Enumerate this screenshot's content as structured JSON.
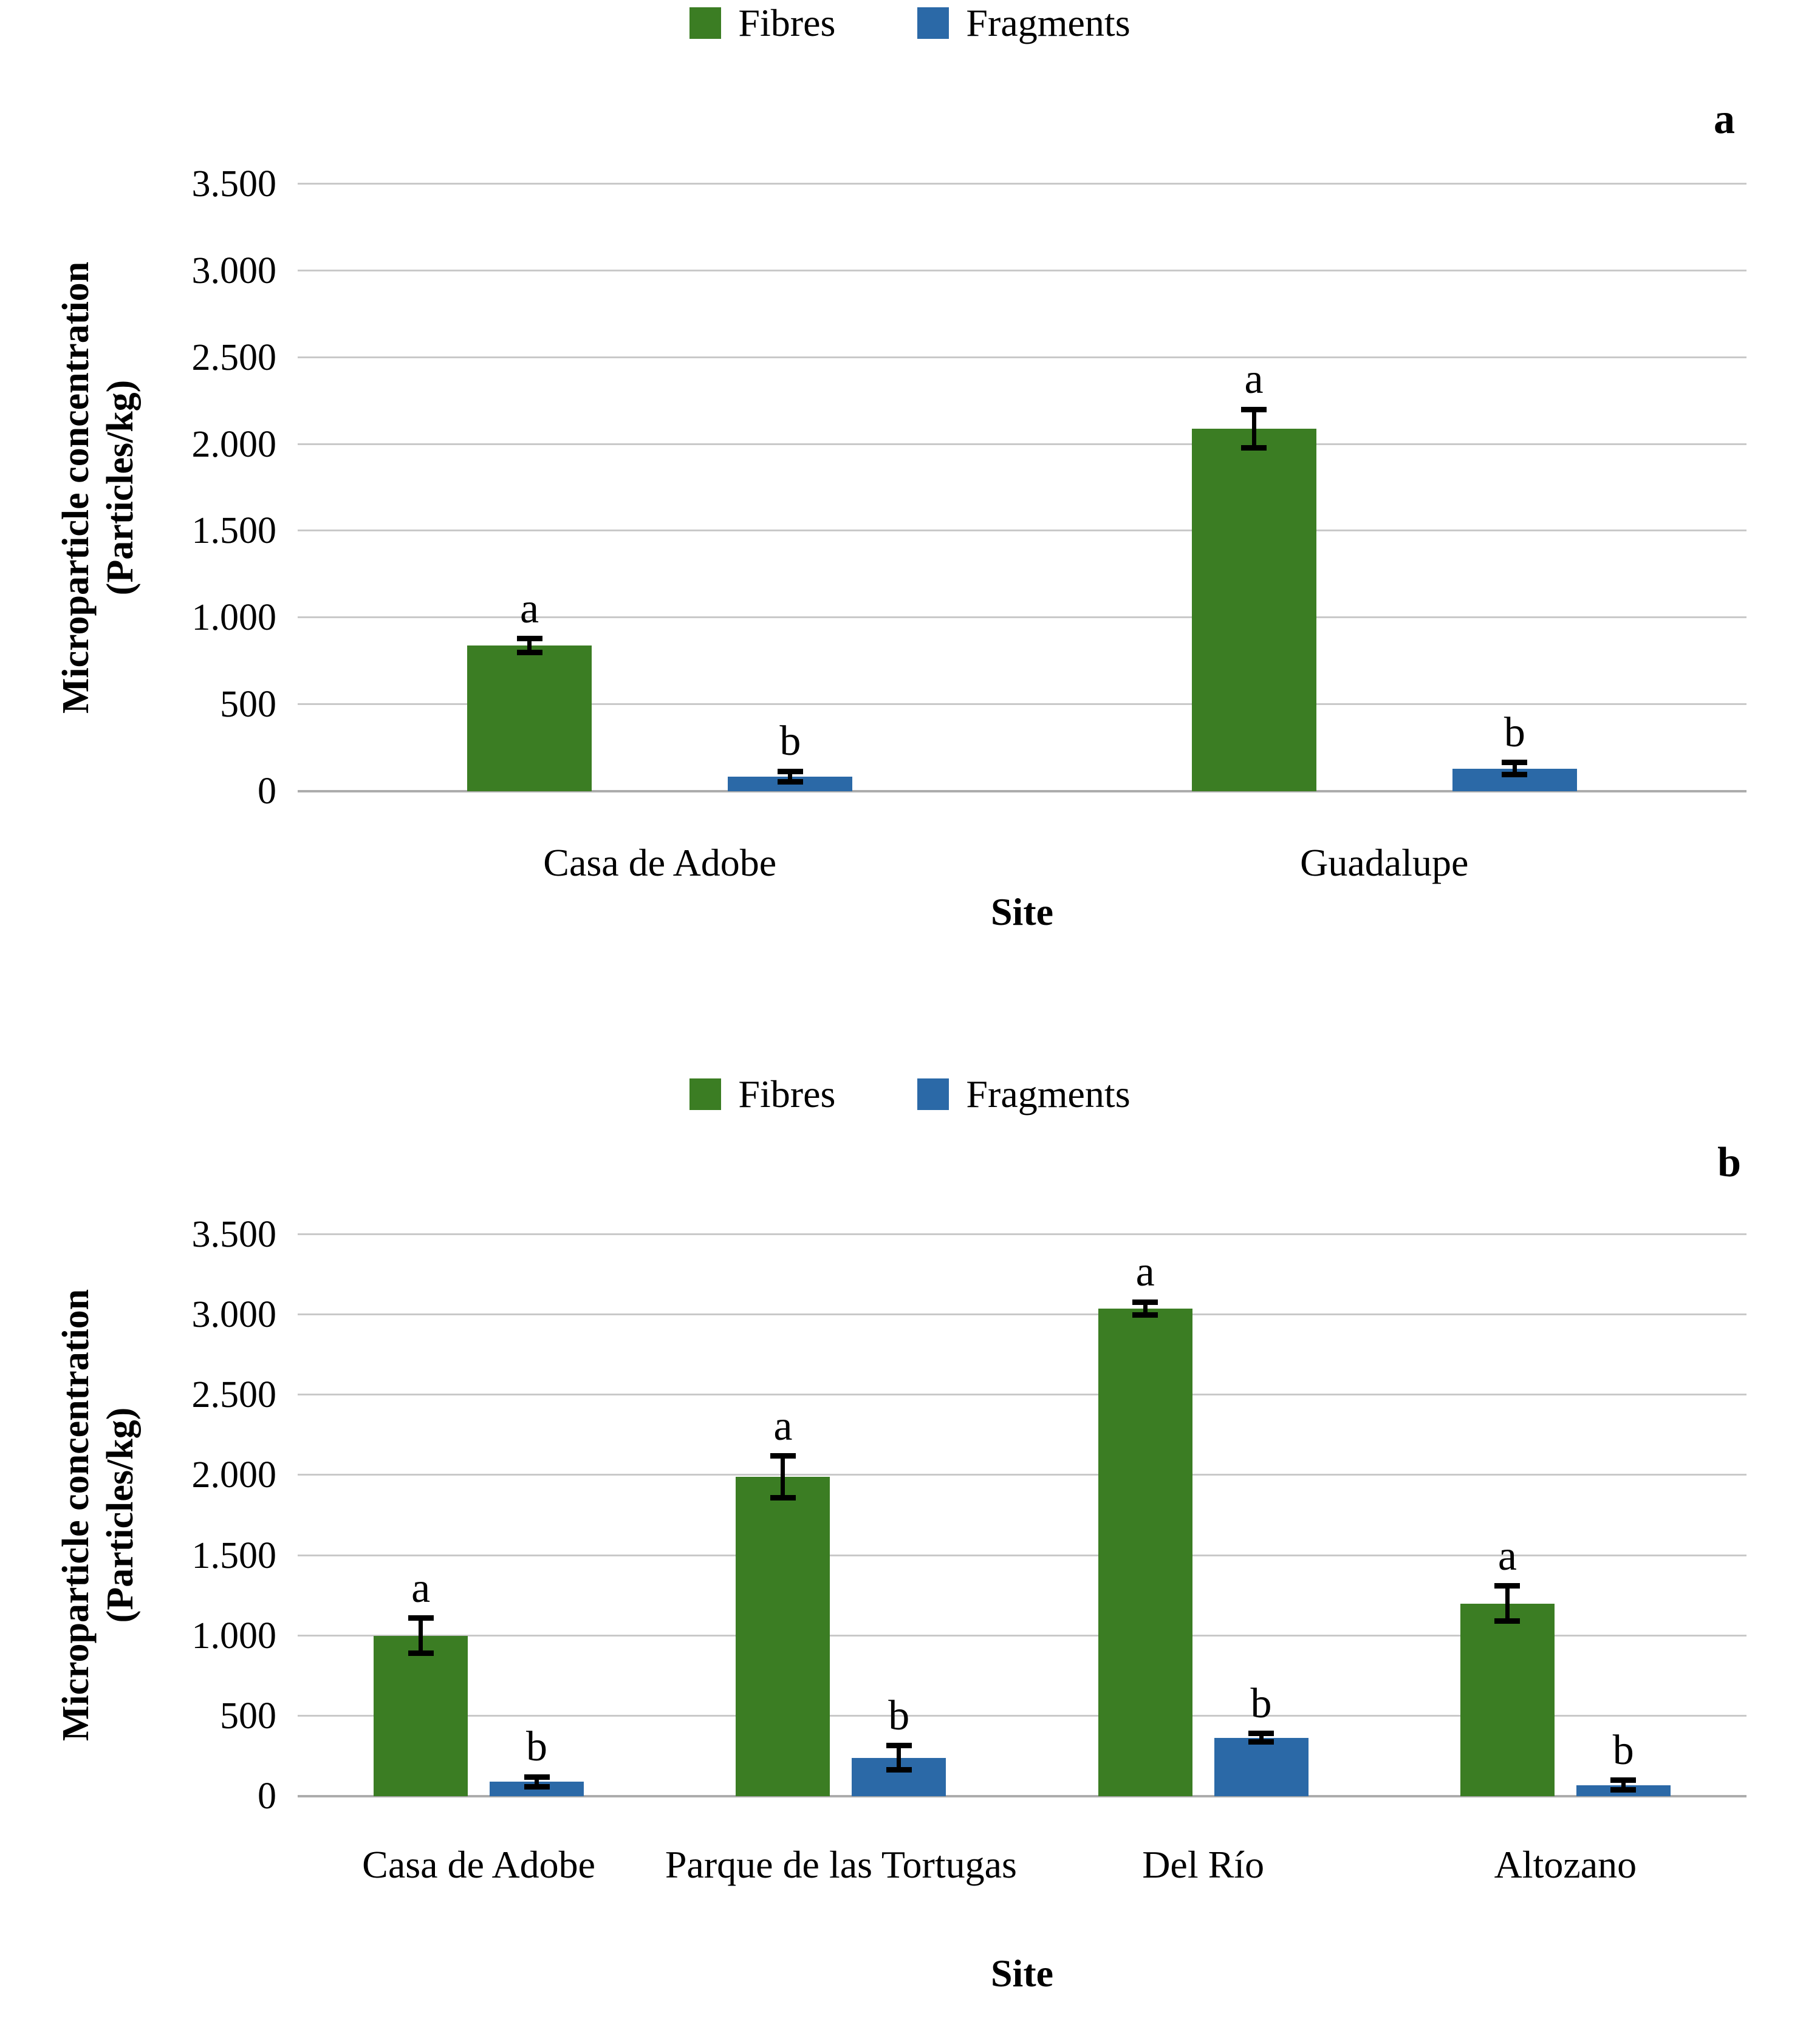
{
  "chart_data": [
    {
      "type": "bar",
      "panel_label": "a",
      "categories": [
        "Casa de Adobe",
        "Guadalupe"
      ],
      "series": [
        {
          "name": "Fibres",
          "color": "#3B7D23",
          "values": [
            840,
            2090
          ],
          "errors": [
            40,
            110
          ],
          "sig_letters": [
            "a",
            "a"
          ]
        },
        {
          "name": "Fragments",
          "color": "#2B69A7",
          "values": [
            85,
            130
          ],
          "errors": [
            30,
            35
          ],
          "sig_letters": [
            "b",
            "b"
          ]
        }
      ],
      "xlabel": "Site",
      "ylabel": "Microparticle concentration (Particles/kg)",
      "ylabel_lines": [
        "Microparticle concentration",
        "(Particles/kg)"
      ],
      "ylim": [
        0,
        3500
      ],
      "yticks": [
        "3.500",
        "3.000",
        "2.500",
        "2.000",
        "1.500",
        "1.000",
        "500",
        "0"
      ],
      "grid": "horizontal",
      "legend_position": "top"
    },
    {
      "type": "bar",
      "panel_label": "b",
      "categories": [
        "Casa de Adobe",
        "Parque de las Tortugas",
        "Del Río",
        "Altozano"
      ],
      "series": [
        {
          "name": "Fibres",
          "color": "#3B7D23",
          "values": [
            1000,
            1990,
            3040,
            1200
          ],
          "errors": [
            110,
            130,
            40,
            110
          ],
          "sig_letters": [
            "a",
            "a",
            "a",
            "a"
          ]
        },
        {
          "name": "Fragments",
          "color": "#2B69A7",
          "values": [
            90,
            240,
            365,
            70
          ],
          "errors": [
            30,
            75,
            25,
            30
          ],
          "sig_letters": [
            "b",
            "b",
            "b",
            "b"
          ]
        }
      ],
      "xlabel": "Site",
      "ylabel": "Microparticle concentration (Particles/kg)",
      "ylabel_lines": [
        "Microparticle concentration",
        "(Particles/kg)"
      ],
      "ylim": [
        0,
        3500
      ],
      "yticks": [
        "3.500",
        "3.000",
        "2.500",
        "2.000",
        "1.500",
        "1.000",
        "500",
        "0"
      ],
      "grid": "horizontal",
      "legend_position": "top"
    }
  ]
}
